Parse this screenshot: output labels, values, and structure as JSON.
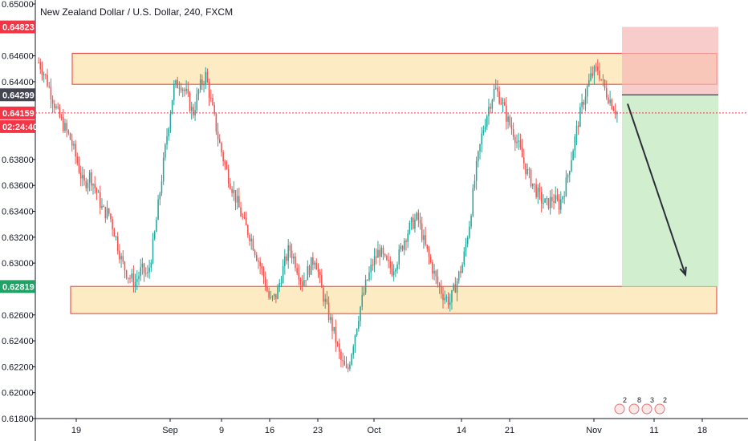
{
  "title": "New Zealand Dollar / U.S. Dollar, 240, FXCM",
  "colors": {
    "up": "#26a69a",
    "down": "#ef5350",
    "zone_fill": "#fde9b8",
    "zone_stroke": "#e53935",
    "stop_fill": "#f7b6b6",
    "target_fill": "#c9ebc6",
    "entry_line": "#131722",
    "arrow": "#2a2e39",
    "tag_red": "#f23645",
    "tag_dark": "#434651",
    "tag_green": "#1fa365",
    "current_line": "#f23645"
  },
  "y_axis": {
    "ticks": [
      "0.65000",
      "0.64600",
      "0.64400",
      "0.63800",
      "0.63600",
      "0.63400",
      "0.63200",
      "0.63000",
      "0.62600",
      "0.62400",
      "0.62200",
      "0.62000",
      "0.61800"
    ]
  },
  "x_axis": {
    "ticks": [
      "19",
      "Sep",
      "9",
      "16",
      "23",
      "Oct",
      "14",
      "21",
      "Nov",
      "11",
      "18"
    ]
  },
  "price_tags": [
    {
      "label": "0.64823",
      "color_key": "tag_red"
    },
    {
      "label": "0.64299",
      "color_key": "tag_dark"
    },
    {
      "label": "0.64159",
      "color_key": "tag_red"
    },
    {
      "label": "02:24:40",
      "color_key": "tag_red"
    },
    {
      "label": "0.62819",
      "color_key": "tag_green"
    }
  ],
  "events": {
    "labels": [
      "2",
      "8",
      "3",
      "2"
    ]
  },
  "chart_data": {
    "type": "candlestick",
    "title": "New Zealand Dollar / U.S. Dollar, 240, FXCM",
    "ylim": [
      0.618,
      0.65
    ],
    "zones": [
      {
        "low": 0.6438,
        "high": 0.6462
      },
      {
        "low": 0.6261,
        "high": 0.6282
      }
    ],
    "position": {
      "direction": "short",
      "entry": 0.64299,
      "stop": 0.64823,
      "target": 0.62819
    },
    "current_price": 0.64159,
    "series_path": [
      0.6455,
      0.6445,
      0.643,
      0.6415,
      0.6405,
      0.6395,
      0.6378,
      0.636,
      0.6368,
      0.6355,
      0.634,
      0.6338,
      0.632,
      0.63,
      0.629,
      0.6285,
      0.6295,
      0.629,
      0.632,
      0.636,
      0.64,
      0.6435,
      0.644,
      0.643,
      0.6415,
      0.6435,
      0.6445,
      0.642,
      0.6395,
      0.6375,
      0.636,
      0.6345,
      0.633,
      0.632,
      0.6305,
      0.629,
      0.627,
      0.6275,
      0.6295,
      0.6312,
      0.63,
      0.6285,
      0.6295,
      0.6305,
      0.628,
      0.6262,
      0.6245,
      0.6225,
      0.6215,
      0.624,
      0.6265,
      0.6285,
      0.63,
      0.631,
      0.63,
      0.6295,
      0.6305,
      0.632,
      0.633,
      0.6335,
      0.6315,
      0.63,
      0.6285,
      0.6275,
      0.627,
      0.6285,
      0.63,
      0.633,
      0.637,
      0.64,
      0.642,
      0.6435,
      0.6425,
      0.641,
      0.64,
      0.6385,
      0.637,
      0.636,
      0.635,
      0.6345,
      0.635,
      0.6345,
      0.636,
      0.6385,
      0.641,
      0.643,
      0.6445,
      0.645,
      0.6435,
      0.6425,
      0.6416
    ]
  }
}
